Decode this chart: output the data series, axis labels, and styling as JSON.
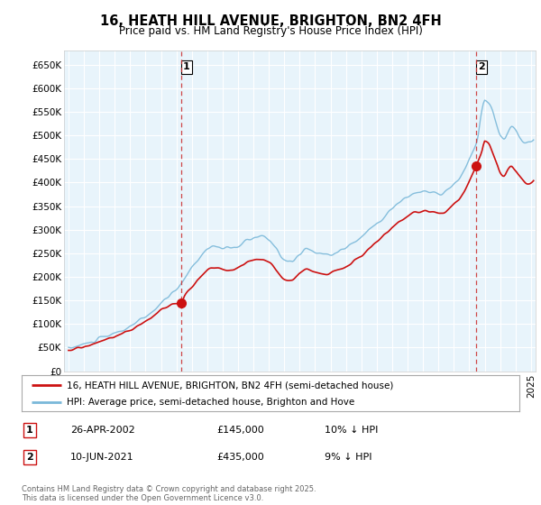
{
  "title": "16, HEATH HILL AVENUE, BRIGHTON, BN2 4FH",
  "subtitle": "Price paid vs. HM Land Registry's House Price Index (HPI)",
  "ylabel_ticks": [
    "£0",
    "£50K",
    "£100K",
    "£150K",
    "£200K",
    "£250K",
    "£300K",
    "£350K",
    "£400K",
    "£450K",
    "£500K",
    "£550K",
    "£600K",
    "£650K"
  ],
  "ytick_values": [
    0,
    50000,
    100000,
    150000,
    200000,
    250000,
    300000,
    350000,
    400000,
    450000,
    500000,
    550000,
    600000,
    650000
  ],
  "ylim": [
    0,
    680000
  ],
  "xlim_start": 1994.7,
  "xlim_end": 2025.3,
  "sale1": {
    "year_x": 2002.32,
    "price": 145000,
    "label": "1",
    "date": "26-APR-2002",
    "pct": "10% ↓ HPI"
  },
  "sale2": {
    "year_x": 2021.45,
    "price": 435000,
    "label": "2",
    "date": "10-JUN-2021",
    "pct": "9% ↓ HPI"
  },
  "legend_line1": "16, HEATH HILL AVENUE, BRIGHTON, BN2 4FH (semi-detached house)",
  "legend_line2": "HPI: Average price, semi-detached house, Brighton and Hove",
  "footnote": "Contains HM Land Registry data © Crown copyright and database right 2025.\nThis data is licensed under the Open Government Licence v3.0.",
  "hpi_color": "#7ab8d9",
  "price_color": "#cc1111",
  "vline_color": "#cc3333",
  "grid_color": "#cccccc",
  "bg_color": "#ffffff"
}
